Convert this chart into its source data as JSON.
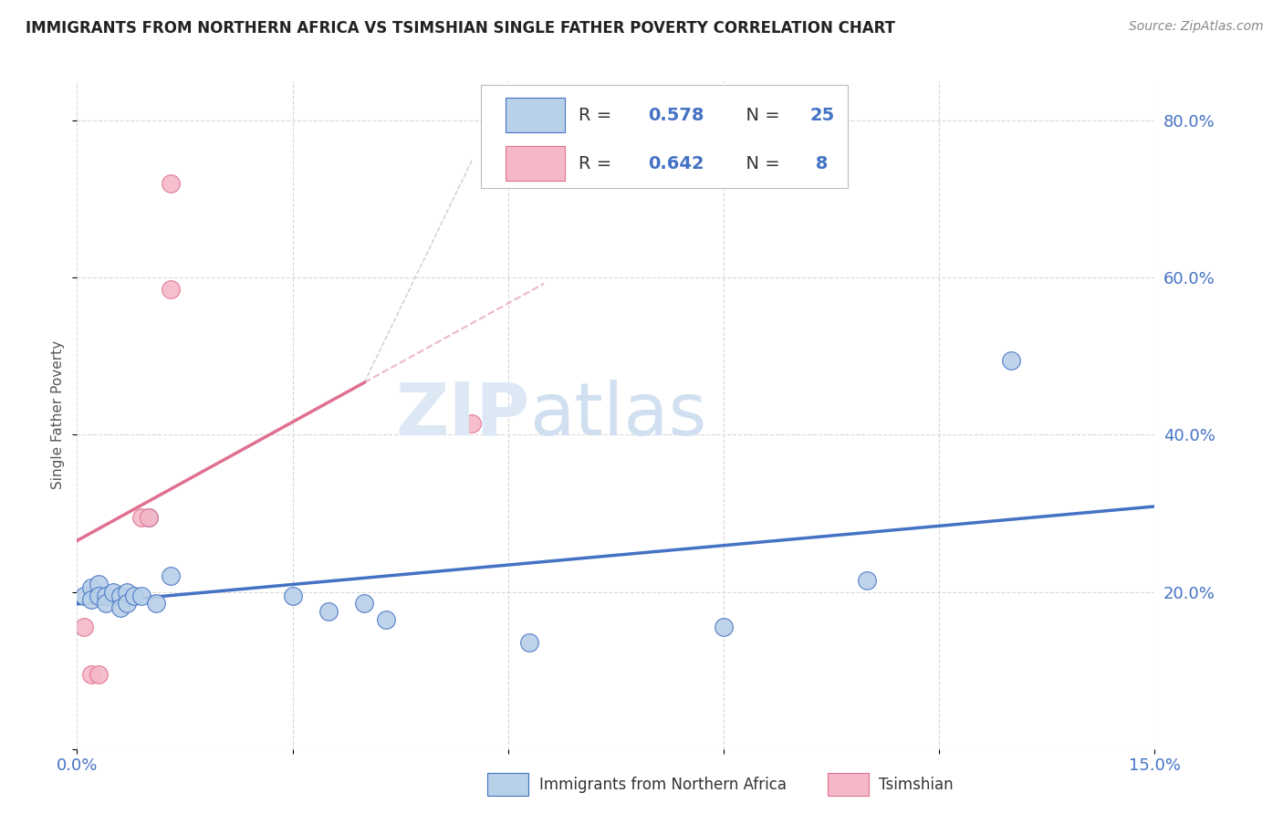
{
  "title": "IMMIGRANTS FROM NORTHERN AFRICA VS TSIMSHIAN SINGLE FATHER POVERTY CORRELATION CHART",
  "source": "Source: ZipAtlas.com",
  "ylabel": "Single Father Poverty",
  "xlim": [
    0.0,
    0.15
  ],
  "ylim": [
    0.0,
    0.85
  ],
  "xticks": [
    0.0,
    0.03,
    0.06,
    0.09,
    0.12,
    0.15
  ],
  "xtick_labels": [
    "0.0%",
    "",
    "",
    "",
    "",
    "15.0%"
  ],
  "yticks": [
    0.0,
    0.2,
    0.4,
    0.6,
    0.8
  ],
  "ytick_right_labels": [
    "",
    "20.0%",
    "40.0%",
    "60.0%",
    "80.0%"
  ],
  "blue_R": "0.578",
  "blue_N": "25",
  "pink_R": "0.642",
  "pink_N": "8",
  "blue_color": "#b8d0e8",
  "blue_line_color": "#4472c4",
  "blue_edge_color": "#4472c4",
  "pink_color": "#f4b8c8",
  "pink_line_color": "#e07090",
  "pink_edge_color": "#e07090",
  "blue_x": [
    0.001,
    0.002,
    0.002,
    0.003,
    0.003,
    0.004,
    0.004,
    0.005,
    0.006,
    0.006,
    0.007,
    0.007,
    0.008,
    0.009,
    0.01,
    0.011,
    0.013,
    0.03,
    0.035,
    0.04,
    0.043,
    0.063,
    0.09,
    0.11,
    0.13
  ],
  "blue_y": [
    0.195,
    0.205,
    0.19,
    0.21,
    0.195,
    0.195,
    0.185,
    0.2,
    0.195,
    0.18,
    0.2,
    0.185,
    0.195,
    0.195,
    0.295,
    0.185,
    0.22,
    0.195,
    0.175,
    0.185,
    0.165,
    0.135,
    0.155,
    0.215,
    0.495
  ],
  "pink_x": [
    0.001,
    0.002,
    0.003,
    0.009,
    0.01,
    0.013,
    0.013,
    0.055
  ],
  "pink_y": [
    0.155,
    0.095,
    0.095,
    0.295,
    0.295,
    0.585,
    0.72,
    0.415
  ],
  "watermark_zip": "ZIP",
  "watermark_atlas": "atlas",
  "background_color": "#ffffff",
  "grid_color": "#d8d8d8",
  "legend_label1": "R = 0.578   N = 25",
  "legend_label2": "R = 0.642   N =  8"
}
